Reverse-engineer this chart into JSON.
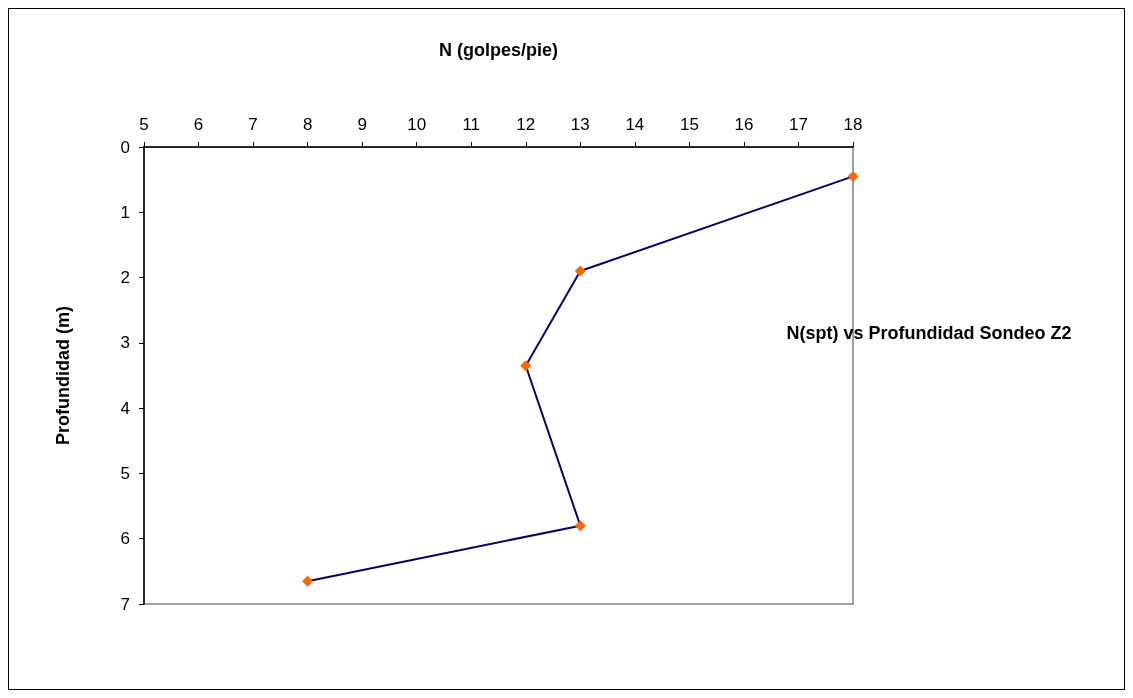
{
  "chart_data": {
    "type": "line",
    "title": "N(spt) vs Profundidad Sondeo Z2",
    "xlabel": "N (golpes/pie)",
    "ylabel": "Profundidad (m)",
    "x": [
      18,
      13,
      12,
      13,
      8
    ],
    "series": [
      {
        "color": "#000080",
        "colors": [
          "#ff6600",
          "#ff6600",
          "#ff6600",
          "#ff6600",
          "#ff6600"
        ],
        "values": [
          0.45,
          1.9,
          3.35,
          5.8,
          6.65
        ]
      }
    ],
    "xlim": [
      5,
      18
    ],
    "xticks": [
      5,
      6,
      7,
      8,
      9,
      10,
      11,
      12,
      13,
      14,
      15,
      16,
      17,
      18
    ],
    "ylim": [
      7,
      0
    ],
    "yticks": [
      0,
      1,
      2,
      3,
      4,
      5,
      6,
      7
    ],
    "grid": false,
    "marker": "diamond",
    "line_style": "solid"
  }
}
